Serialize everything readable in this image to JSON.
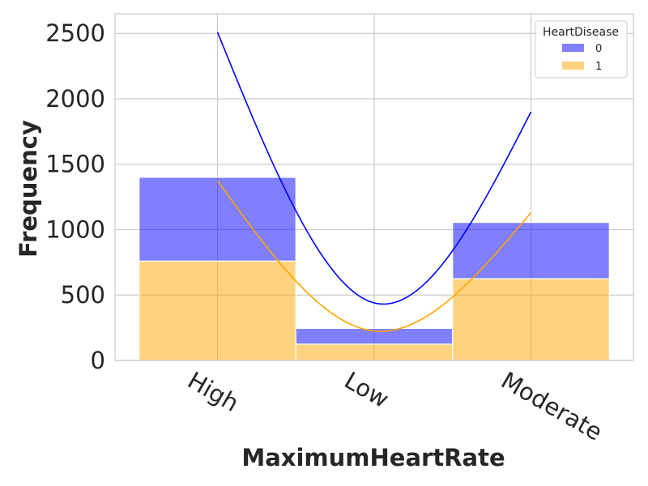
{
  "chart_data": {
    "type": "bar",
    "stacked": true,
    "title": "",
    "xlabel": "MaximumHeartRate",
    "ylabel": "Frequency",
    "categories": [
      "High",
      "Low",
      "Moderate"
    ],
    "ylim": [
      0,
      2650
    ],
    "yticks": [
      0,
      500,
      1000,
      1500,
      2000,
      2500
    ],
    "grid": true,
    "legend": {
      "title": "HeartDisease",
      "placement": "top-right"
    },
    "series": [
      {
        "name": "0",
        "color": "#0000ff",
        "values": [
          640,
          120,
          430
        ],
        "kde": [
          2510,
          440,
          1900
        ]
      },
      {
        "name": "1",
        "color": "#ffa500",
        "values": [
          760,
          125,
          625
        ],
        "kde": [
          1375,
          225,
          1130
        ]
      }
    ]
  }
}
